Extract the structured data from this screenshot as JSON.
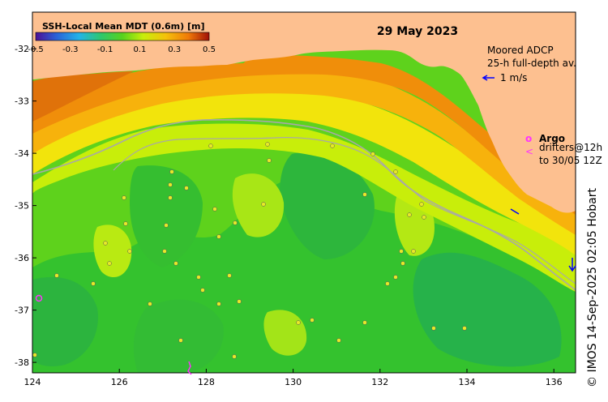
{
  "title": "29 May 2023",
  "colorbar": {
    "title": "SSH-Local Mean MDT (0.6m) [m]",
    "tick_labels": [
      "-0.5",
      "-0.3",
      "-0.1",
      "0.1",
      "0.3",
      "0.5"
    ],
    "range": [
      -0.5,
      0.5
    ]
  },
  "axes": {
    "x_ticks": [
      "124",
      "126",
      "128",
      "130",
      "132",
      "134",
      "136"
    ],
    "y_ticks": [
      "-32",
      "-33",
      "-34",
      "-35",
      "-36",
      "-37",
      "-38"
    ],
    "xlim": [
      124,
      136.5
    ],
    "ylim": [
      -38.2,
      -31.3
    ]
  },
  "legend": {
    "adcp_line1": "Moored ADCP",
    "adcp_line2": "25-h full-depth av.",
    "adcp_scale": "1 m/s",
    "argo_marker": "o",
    "argo_label": "Argo",
    "drifter_marker": "<",
    "drifter_line1": "drifters@12h",
    "drifter_line2": "to 30/05 12Z"
  },
  "credit": "© IMOS 14-Sep-2025 02:05 Hobart",
  "colors": {
    "land": "#fdc090",
    "argo": "#ff33ff",
    "drifter": "#ff33ff",
    "adcp": "#0000ff",
    "shelf_contour": "#a8a8a8"
  }
}
